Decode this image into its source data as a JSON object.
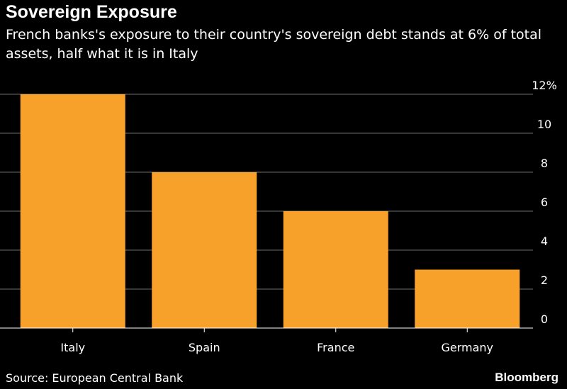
{
  "title": "Sovereign Exposure",
  "subtitle": "French banks's exposure to their country's sovereign debt stands at 6% of total assets, half what it is in Italy",
  "source": "Source: European Central Bank",
  "brand": "Bloomberg",
  "colors": {
    "bar": "#F8A12A",
    "grid": "#6e6e6e",
    "axis": "#ffffff",
    "background": "#000000"
  },
  "chart_data": {
    "type": "bar",
    "categories": [
      "Italy",
      "Spain",
      "France",
      "Germany"
    ],
    "values": [
      12,
      8,
      6,
      3
    ],
    "ylim": [
      0,
      12
    ],
    "yticks": [
      0,
      2,
      4,
      6,
      8,
      10,
      12
    ],
    "ytick_labels": [
      "0",
      "2",
      "4",
      "6",
      "8",
      "10",
      "12%"
    ],
    "yaxis_position": "right",
    "grid": true,
    "xlabel": "",
    "ylabel": ""
  }
}
